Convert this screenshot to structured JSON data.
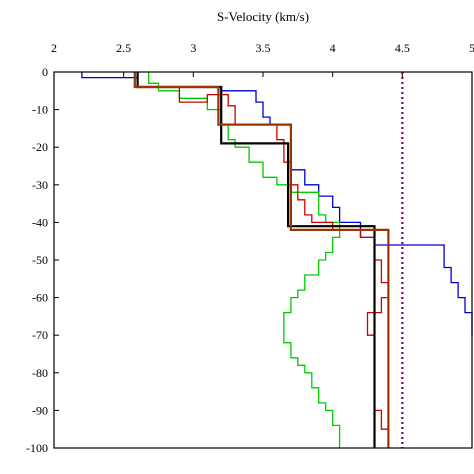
{
  "chart_data": {
    "type": "line",
    "title": "",
    "xlabel": "S-Velocity (km/s)",
    "ylabel": "",
    "x_axis_position": "top",
    "xlim": [
      2,
      5
    ],
    "ylim": [
      -100,
      0
    ],
    "x_ticks": [
      2,
      2.5,
      3,
      3.5,
      4,
      4.5,
      5
    ],
    "x_tick_labels": [
      "2",
      "2.5",
      "3",
      "3.5",
      "4",
      "4.5",
      "5"
    ],
    "y_ticks": [
      0,
      -10,
      -20,
      -30,
      -40,
      -50,
      -60,
      -70,
      -80,
      -90,
      -100
    ],
    "y_tick_labels": [
      "0",
      "-10",
      "-20",
      "-30",
      "-40",
      "-50",
      "-60",
      "-70",
      "-80",
      "-90",
      "-100"
    ],
    "grid": false,
    "legend": "none",
    "reference_line": {
      "x": 4.5,
      "color": "#800080",
      "style": "dotted"
    },
    "series": [
      {
        "color": "#0000cc",
        "width": 1.3,
        "points": [
          [
            2.2,
            0
          ],
          [
            2.2,
            -1.5
          ],
          [
            2.6,
            -1.5
          ],
          [
            2.6,
            -4
          ],
          [
            3.2,
            -4
          ],
          [
            3.2,
            -5
          ],
          [
            3.45,
            -5
          ],
          [
            3.45,
            -8
          ],
          [
            3.5,
            -8
          ],
          [
            3.5,
            -12
          ],
          [
            3.55,
            -12
          ],
          [
            3.55,
            -14
          ],
          [
            3.7,
            -14
          ],
          [
            3.7,
            -26
          ],
          [
            3.8,
            -26
          ],
          [
            3.8,
            -30
          ],
          [
            3.9,
            -30
          ],
          [
            3.9,
            -33
          ],
          [
            4.0,
            -33
          ],
          [
            4.0,
            -36
          ],
          [
            4.05,
            -36
          ],
          [
            4.05,
            -40
          ],
          [
            4.2,
            -40
          ],
          [
            4.2,
            -44
          ],
          [
            4.3,
            -44
          ],
          [
            4.3,
            -46
          ],
          [
            4.8,
            -46
          ],
          [
            4.8,
            -52
          ],
          [
            4.85,
            -52
          ],
          [
            4.85,
            -56
          ],
          [
            4.9,
            -56
          ],
          [
            4.9,
            -60
          ],
          [
            4.95,
            -60
          ],
          [
            4.95,
            -64
          ],
          [
            5.0,
            -64
          ],
          [
            5.0,
            -70
          ]
        ]
      },
      {
        "color": "#00cc00",
        "width": 1.3,
        "points": [
          [
            2.68,
            0
          ],
          [
            2.68,
            -3
          ],
          [
            2.75,
            -3
          ],
          [
            2.75,
            -5
          ],
          [
            2.9,
            -5
          ],
          [
            2.9,
            -7
          ],
          [
            3.1,
            -7
          ],
          [
            3.1,
            -10
          ],
          [
            3.2,
            -10
          ],
          [
            3.2,
            -14
          ],
          [
            3.25,
            -14
          ],
          [
            3.25,
            -18
          ],
          [
            3.3,
            -18
          ],
          [
            3.3,
            -20
          ],
          [
            3.4,
            -20
          ],
          [
            3.4,
            -24
          ],
          [
            3.5,
            -24
          ],
          [
            3.5,
            -28
          ],
          [
            3.6,
            -28
          ],
          [
            3.6,
            -30
          ],
          [
            3.7,
            -30
          ],
          [
            3.7,
            -32
          ],
          [
            3.9,
            -32
          ],
          [
            3.9,
            -38
          ],
          [
            3.95,
            -38
          ],
          [
            3.95,
            -40
          ],
          [
            4.05,
            -40
          ],
          [
            4.05,
            -44
          ],
          [
            4.0,
            -44
          ],
          [
            4.0,
            -48
          ],
          [
            3.95,
            -48
          ],
          [
            3.95,
            -50
          ],
          [
            3.9,
            -50
          ],
          [
            3.9,
            -54
          ],
          [
            3.8,
            -54
          ],
          [
            3.8,
            -58
          ],
          [
            3.75,
            -58
          ],
          [
            3.75,
            -60
          ],
          [
            3.7,
            -60
          ],
          [
            3.7,
            -64
          ],
          [
            3.65,
            -64
          ],
          [
            3.65,
            -72
          ],
          [
            3.7,
            -72
          ],
          [
            3.7,
            -76
          ],
          [
            3.75,
            -76
          ],
          [
            3.75,
            -78
          ],
          [
            3.8,
            -78
          ],
          [
            3.8,
            -80
          ],
          [
            3.85,
            -80
          ],
          [
            3.85,
            -84
          ],
          [
            3.9,
            -84
          ],
          [
            3.9,
            -88
          ],
          [
            3.95,
            -88
          ],
          [
            3.95,
            -90
          ],
          [
            4.0,
            -90
          ],
          [
            4.0,
            -94
          ],
          [
            4.05,
            -94
          ],
          [
            4.05,
            -100
          ]
        ]
      },
      {
        "color": "#cc0000",
        "width": 1.3,
        "points": [
          [
            2.6,
            0
          ],
          [
            2.6,
            -4
          ],
          [
            2.9,
            -4
          ],
          [
            2.9,
            -8
          ],
          [
            3.1,
            -8
          ],
          [
            3.1,
            -6
          ],
          [
            3.25,
            -6
          ],
          [
            3.25,
            -9
          ],
          [
            3.3,
            -9
          ],
          [
            3.3,
            -14
          ],
          [
            3.6,
            -14
          ],
          [
            3.6,
            -18
          ],
          [
            3.65,
            -18
          ],
          [
            3.65,
            -24
          ],
          [
            3.7,
            -24
          ],
          [
            3.7,
            -30
          ],
          [
            3.75,
            -30
          ],
          [
            3.75,
            -34
          ],
          [
            3.8,
            -34
          ],
          [
            3.8,
            -38
          ],
          [
            3.85,
            -38
          ],
          [
            3.85,
            -40
          ],
          [
            4.0,
            -40
          ],
          [
            4.0,
            -42
          ],
          [
            4.2,
            -42
          ],
          [
            4.2,
            -44
          ],
          [
            4.3,
            -44
          ],
          [
            4.3,
            -50
          ],
          [
            4.35,
            -50
          ],
          [
            4.35,
            -56
          ],
          [
            4.4,
            -56
          ],
          [
            4.4,
            -60
          ],
          [
            4.35,
            -60
          ],
          [
            4.35,
            -64
          ],
          [
            4.25,
            -64
          ],
          [
            4.25,
            -70
          ],
          [
            4.3,
            -70
          ],
          [
            4.3,
            -90
          ],
          [
            4.35,
            -90
          ],
          [
            4.35,
            -95
          ],
          [
            4.4,
            -95
          ],
          [
            4.4,
            -100
          ]
        ]
      },
      {
        "color": "#000000",
        "width": 2.2,
        "points": [
          [
            2.6,
            0
          ],
          [
            2.6,
            -4
          ],
          [
            3.2,
            -4
          ],
          [
            3.2,
            -19
          ],
          [
            3.68,
            -19
          ],
          [
            3.68,
            -41
          ],
          [
            4.3,
            -41
          ],
          [
            4.3,
            -100
          ]
        ]
      },
      {
        "color": "#993300",
        "width": 2.2,
        "points": [
          [
            2.58,
            0
          ],
          [
            2.58,
            -4
          ],
          [
            3.18,
            -4
          ],
          [
            3.18,
            -14
          ],
          [
            3.7,
            -14
          ],
          [
            3.7,
            -42
          ],
          [
            4.4,
            -42
          ],
          [
            4.4,
            -100
          ]
        ]
      }
    ]
  }
}
